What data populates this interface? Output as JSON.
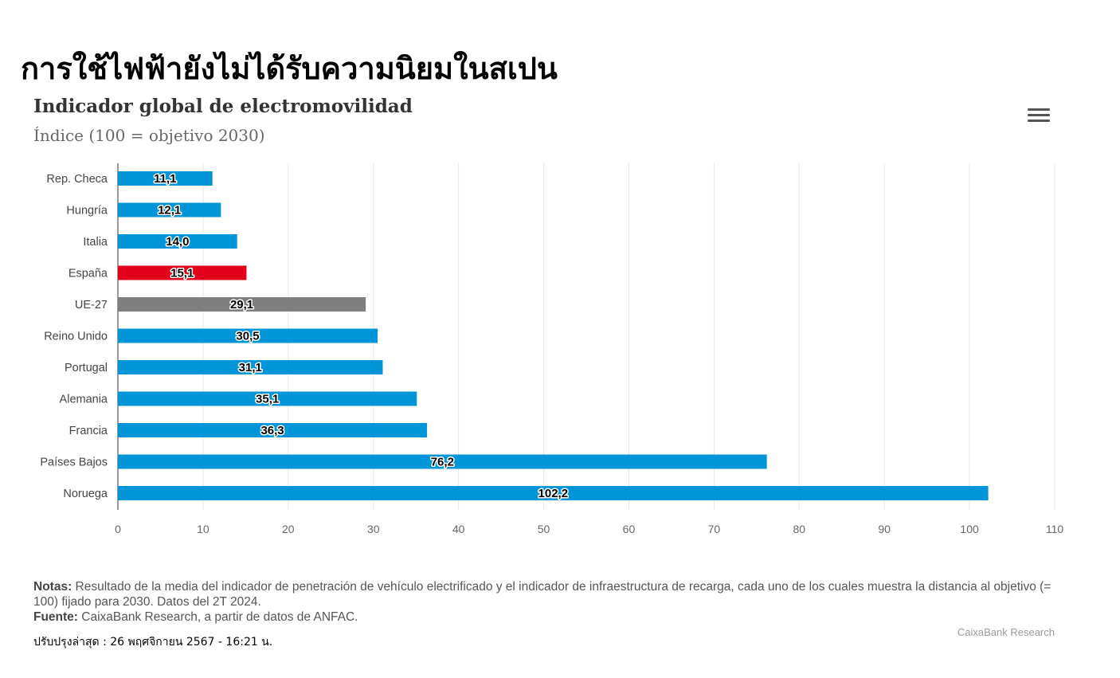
{
  "headline": "การใช้ไฟฟ้ายังไม่ได้รับความนิยมในสเปน",
  "menu_icon": "hamburger-menu-icon",
  "notes": {
    "notes_label": "Notas:",
    "notes_text": "Resultado de la media del indicador de penetración de vehículo electrificado y el indicador de infraestructura de recarga, cada uno de los cuales muestra la distancia al objetivo (= 100) fijado para 2030. Datos del 2T 2024.",
    "source_label": "Fuente:",
    "source_text": "CaixaBank Research, a partir de datos de ANFAC."
  },
  "updated": "ปรับปรุงล่าสุด : 26 พฤศจิกายน 2567 - 16:21 น.",
  "credit": "CaixaBank Research",
  "colors": {
    "default_bar": "#0095d9",
    "highlight_spain": "#e2001a",
    "highlight_eu": "#7f7f7f"
  },
  "chart_data": {
    "type": "bar",
    "orientation": "horizontal",
    "title": "Indicador global de electromovilidad",
    "subtitle": "Índice (100 = objetivo 2030)",
    "categories": [
      "Rep. Checa",
      "Hungría",
      "Italia",
      "España",
      "UE-27",
      "Reino Unido",
      "Portugal",
      "Alemania",
      "Francia",
      "Países Bajos",
      "Noruega"
    ],
    "values": [
      11.1,
      12.1,
      14.0,
      15.1,
      29.1,
      30.5,
      31.1,
      35.1,
      36.3,
      76.2,
      102.2
    ],
    "value_labels": [
      "11,1",
      "12,1",
      "14,0",
      "15,1",
      "29,1",
      "30,5",
      "31,1",
      "35,1",
      "36,3",
      "76,2",
      "102,2"
    ],
    "bar_colors": [
      "#0095d9",
      "#0095d9",
      "#0095d9",
      "#e2001a",
      "#7f7f7f",
      "#0095d9",
      "#0095d9",
      "#0095d9",
      "#0095d9",
      "#0095d9",
      "#0095d9"
    ],
    "xlim": [
      0,
      110
    ],
    "xticks": [
      0,
      10,
      20,
      30,
      40,
      50,
      60,
      70,
      80,
      90,
      100,
      110
    ],
    "grid": true,
    "legend": "none",
    "xlabel": "",
    "ylabel": ""
  }
}
